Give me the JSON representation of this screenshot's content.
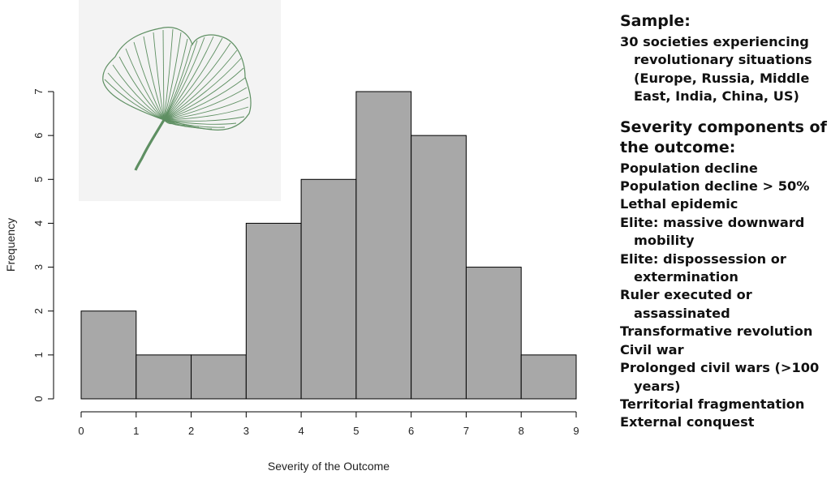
{
  "chart_data": {
    "type": "bar",
    "subtype": "histogram",
    "bin_edges": [
      0,
      1,
      2,
      3,
      4,
      5,
      6,
      7,
      8,
      9
    ],
    "values": [
      2,
      1,
      1,
      4,
      5,
      7,
      6,
      3,
      1
    ],
    "xlabel": "Severity of the Outcome",
    "ylabel": "Frequency",
    "xlim": [
      0,
      9
    ],
    "ylim": [
      0,
      7
    ],
    "x_ticks": [
      "0",
      "1",
      "2",
      "3",
      "4",
      "5",
      "6",
      "7",
      "8",
      "9"
    ],
    "y_ticks": [
      "0",
      "1",
      "2",
      "3",
      "4",
      "5",
      "6",
      "7"
    ],
    "grid": false,
    "bar_color": "#a8a8a8"
  },
  "side_panel": {
    "sample_heading": "Sample:",
    "sample_items": [
      "30 societies experiencing revolutionary situations (Europe, Russia, Middle East, India, China, US)"
    ],
    "severity_heading": "Severity components of the outcome:",
    "severity_items": [
      "Population decline",
      "Population decline > 50%",
      "Lethal epidemic",
      "Elite: massive downward mobility",
      "Elite: dispossession or extermination",
      "Ruler executed or assassinated",
      "Transformative revolution",
      "Civil war",
      "Prolonged civil wars (>100 years)",
      "Territorial fragmentation",
      "External conquest"
    ]
  },
  "logo": {
    "icon": "ginkgo-leaf-icon",
    "color": "#5e8f62"
  }
}
